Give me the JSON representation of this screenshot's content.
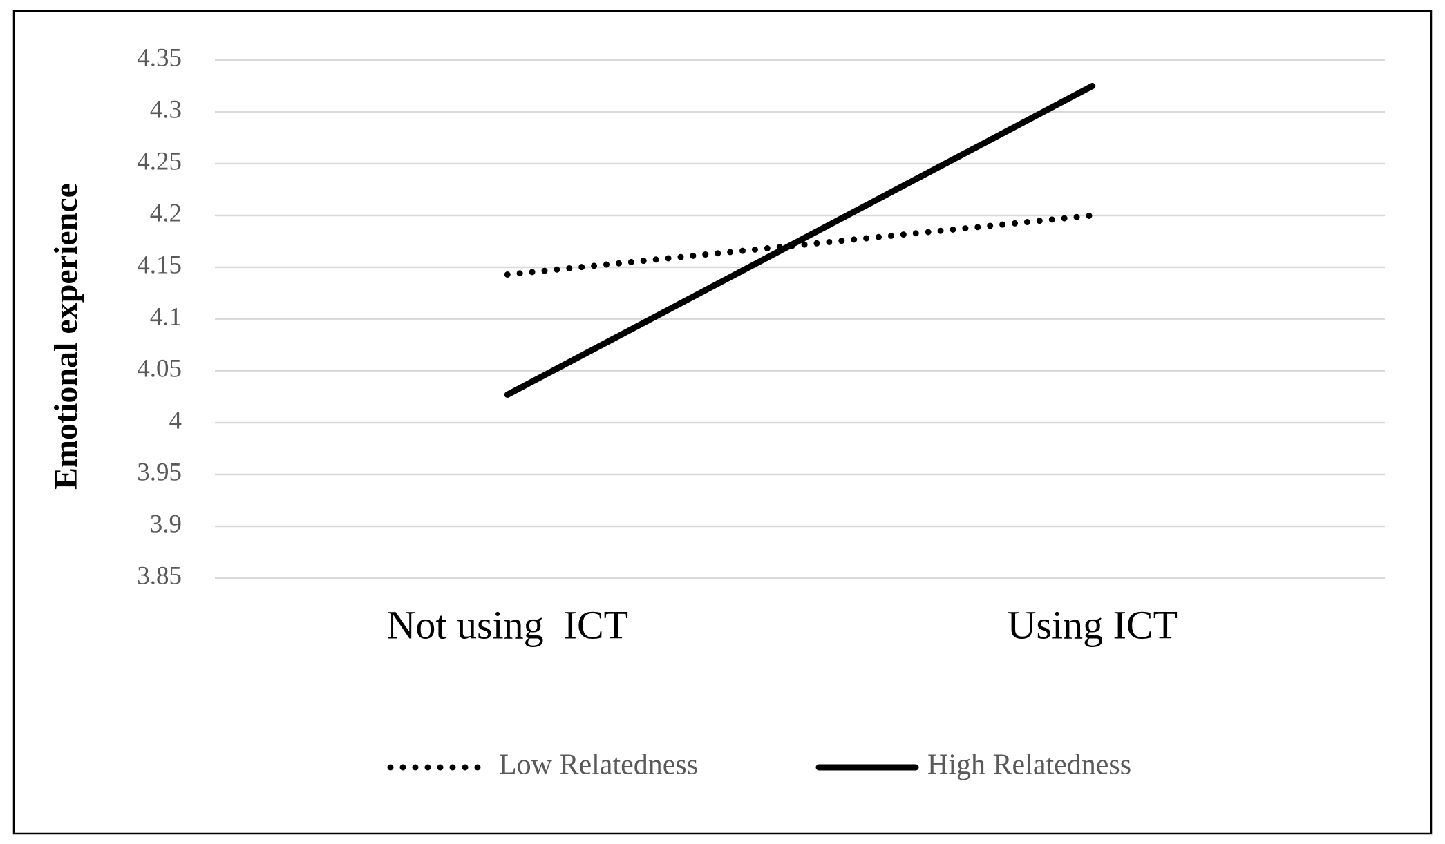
{
  "chart_data": {
    "type": "line",
    "y_label": "Emotional experience",
    "categories": [
      "Not using  ICT",
      "Using ICT"
    ],
    "series": [
      {
        "name": "Low Relatedness",
        "color": "#000000",
        "linestyle": "dotted",
        "values": [
          4.143,
          4.2
        ]
      },
      {
        "name": "High Relatedness",
        "color": "#000000",
        "linestyle": "solid",
        "values": [
          4.027,
          4.325
        ]
      }
    ],
    "ylim": [
      3.85,
      4.35
    ],
    "yticks": [
      3.85,
      3.9,
      3.95,
      4,
      4.05,
      4.1,
      4.15,
      4.2,
      4.25,
      4.3,
      4.35
    ],
    "grid": true,
    "legend": "bottom"
  }
}
